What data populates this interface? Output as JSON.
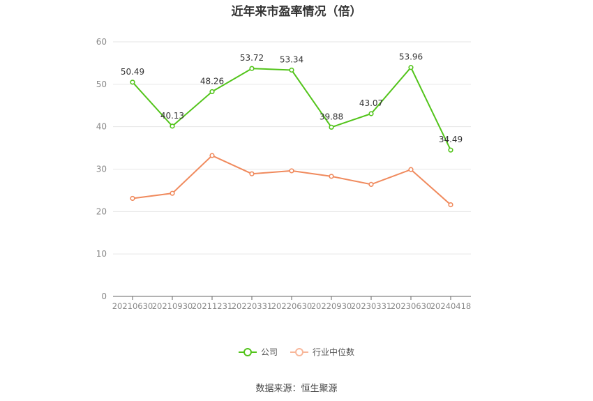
{
  "chart_data": {
    "type": "line",
    "title": "近年来市盈率情况（倍）",
    "categories": [
      "20210630",
      "20210930",
      "20211231",
      "20220331",
      "20220630",
      "20220930",
      "20230331",
      "20230630",
      "20240418"
    ],
    "series": [
      {
        "name": "公司",
        "color": "#52c41a",
        "values": [
          50.49,
          40.13,
          48.26,
          53.72,
          53.34,
          39.88,
          43.07,
          53.96,
          34.49
        ],
        "labels": true
      },
      {
        "name": "行业中位数",
        "color": "#f08a5d",
        "values": [
          23.1,
          24.3,
          33.2,
          28.9,
          29.6,
          28.3,
          26.4,
          29.9,
          21.6
        ],
        "labels": false
      }
    ],
    "yticks": [
      0,
      10,
      20,
      30,
      40,
      50,
      60
    ],
    "ylim": [
      0,
      60
    ],
    "grid": true,
    "legend": "bottom-center"
  },
  "footer": {
    "source": "数据来源：恒生聚源"
  }
}
